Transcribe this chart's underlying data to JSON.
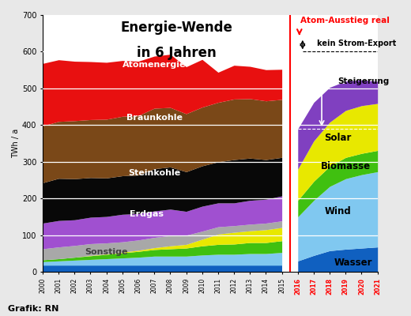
{
  "title_line1": "Energie-Wende",
  "title_line2": "in 6 Jahren",
  "ylabel": "TWh / a",
  "footer": "Grafik: RN",
  "ylim": [
    0,
    700
  ],
  "yticks": [
    0,
    100,
    200,
    300,
    400,
    500,
    600,
    700
  ],
  "years_hist": [
    2000,
    2001,
    2002,
    2003,
    2004,
    2005,
    2006,
    2007,
    2008,
    2009,
    2010,
    2011,
    2012,
    2013,
    2014,
    2015
  ],
  "years_fut": [
    2016,
    2017,
    2018,
    2019,
    2020,
    2021
  ],
  "bg_color": "#e8e8e8",
  "plot_bg": "#ffffff",
  "layers_hist": {
    "Wasser": [
      18,
      18,
      18,
      18,
      18,
      18,
      18,
      18,
      18,
      18,
      18,
      18,
      18,
      18,
      18,
      18
    ],
    "Wind": [
      10,
      12,
      14,
      16,
      18,
      20,
      22,
      25,
      25,
      25,
      28,
      30,
      30,
      32,
      32,
      35
    ],
    "Biomasse": [
      5,
      6,
      8,
      10,
      12,
      14,
      16,
      18,
      20,
      22,
      25,
      27,
      28,
      30,
      30,
      32
    ],
    "Solar": [
      0,
      0,
      0,
      1,
      1,
      2,
      3,
      5,
      8,
      10,
      18,
      28,
      32,
      32,
      35,
      36
    ],
    "Sonstige": [
      30,
      32,
      32,
      32,
      30,
      28,
      28,
      28,
      28,
      25,
      22,
      20,
      18,
      18,
      18,
      18
    ],
    "Erdgas": [
      70,
      72,
      70,
      72,
      72,
      75,
      72,
      72,
      72,
      65,
      68,
      65,
      62,
      65,
      65,
      68
    ],
    "Steinkohle": [
      110,
      115,
      112,
      108,
      105,
      105,
      105,
      115,
      115,
      108,
      110,
      112,
      118,
      115,
      108,
      105
    ],
    "Braunkohle": [
      155,
      155,
      158,
      158,
      160,
      162,
      162,
      165,
      162,
      158,
      160,
      162,
      165,
      162,
      160,
      158
    ],
    "Atomenergie": [
      170,
      168,
      162,
      158,
      155,
      152,
      148,
      142,
      145,
      128,
      130,
      82,
      92,
      88,
      85,
      82
    ]
  },
  "layers_fut": {
    "Wasser": [
      30,
      45,
      58,
      62,
      65,
      68
    ],
    "Wind": [
      120,
      150,
      175,
      192,
      200,
      205
    ],
    "Biomasse": [
      45,
      52,
      55,
      58,
      58,
      58
    ],
    "Solar": [
      85,
      110,
      120,
      128,
      130,
      128
    ],
    "Effizienz": [
      110,
      105,
      95,
      80,
      70,
      60
    ],
    "Steigerung": [
      0,
      0,
      0,
      0,
      0,
      0
    ]
  },
  "colors_hist": {
    "Wasser": "#1060c0",
    "Wind": "#80c8f0",
    "Biomasse": "#40c010",
    "Solar": "#e8e800",
    "Sonstige": "#a8a8a8",
    "Erdgas": "#a050d0",
    "Steinkohle": "#080808",
    "Braunkohle": "#7a4818",
    "Atomenergie": "#e81010"
  },
  "colors_fut": {
    "Wasser": "#1060c0",
    "Wind": "#80c8f0",
    "Biomasse": "#40c010",
    "Solar": "#e8e800",
    "Effizienz": "#8040c0",
    "Steigerung": "#080808"
  },
  "annotation_atom_ausstieg": "Atom-Ausstieg real",
  "annotation_kein_export": "kein Strom-Export",
  "annotation_steigerung": "Steigerung",
  "label_sonstige": "Sonstige",
  "label_solar": "Solar",
  "label_biomasse": "Biomasse",
  "label_wind": "Wind",
  "label_wasser": "Wasser"
}
